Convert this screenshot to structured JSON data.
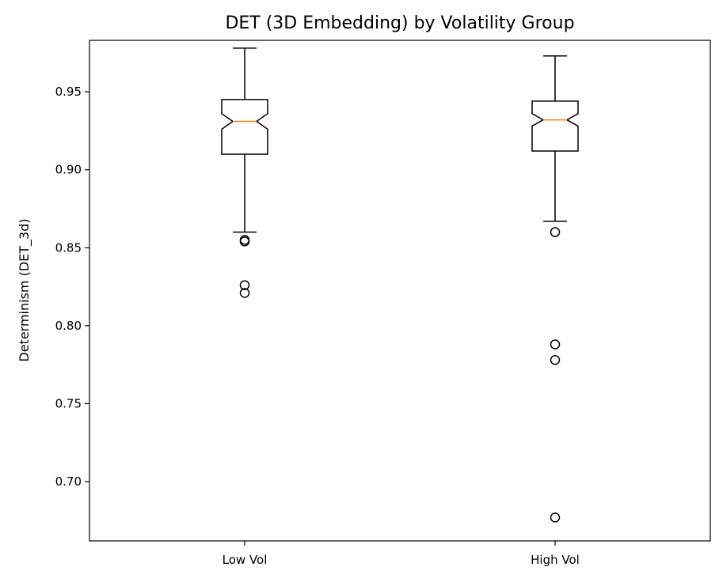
{
  "chart_data": {
    "type": "boxplot",
    "notched": true,
    "title": "DET (3D Embedding) by Volatility Group",
    "xlabel": "",
    "ylabel": "Determinism (DET_3d)",
    "ylim": [
      0.662,
      0.983
    ],
    "yticks": [
      0.7,
      0.75,
      0.8,
      0.85,
      0.9,
      0.95
    ],
    "ytick_labels": [
      "0.70",
      "0.75",
      "0.80",
      "0.85",
      "0.90",
      "0.95"
    ],
    "grid": false,
    "categories": [
      "Low Vol",
      "High Vol"
    ],
    "boxes": [
      {
        "label": "Low Vol",
        "whisker_low": 0.86,
        "q1": 0.91,
        "median": 0.931,
        "q3": 0.945,
        "whisker_high": 0.978,
        "notch_low": 0.926,
        "notch_high": 0.936,
        "outliers": [
          0.855,
          0.854,
          0.826,
          0.821
        ]
      },
      {
        "label": "High Vol",
        "whisker_low": 0.867,
        "q1": 0.912,
        "median": 0.932,
        "q3": 0.944,
        "whisker_high": 0.973,
        "notch_low": 0.928,
        "notch_high": 0.936,
        "outliers": [
          0.86,
          0.788,
          0.778,
          0.677
        ]
      }
    ],
    "colors": {
      "box": "#000000",
      "median": "#ff7f0e",
      "background": "#ffffff"
    }
  }
}
